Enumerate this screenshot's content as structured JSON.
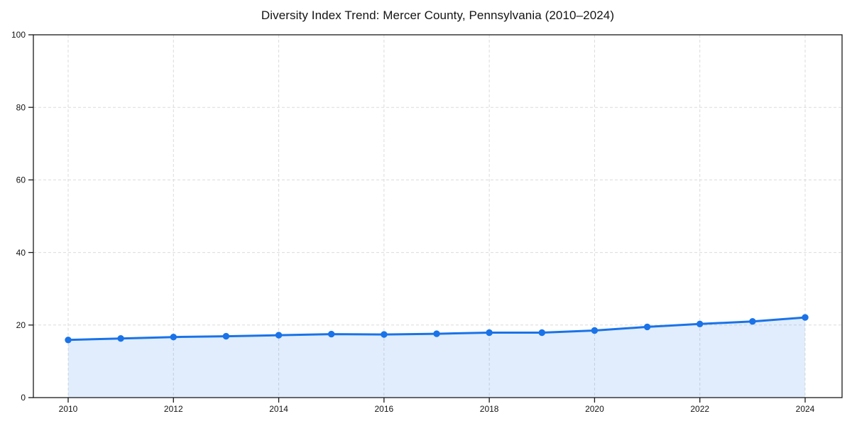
{
  "page": {
    "background_color": "#ffffff"
  },
  "chart_data": {
    "type": "line",
    "title": "Diversity Index Trend: Mercer County, Pennsylvania (2010–2024)",
    "x": [
      2010,
      2011,
      2012,
      2013,
      2014,
      2015,
      2016,
      2017,
      2018,
      2019,
      2020,
      2021,
      2022,
      2023,
      2024
    ],
    "series": [
      {
        "name": "Diversity Index",
        "values": [
          15.9,
          16.3,
          16.7,
          16.9,
          17.2,
          17.5,
          17.4,
          17.6,
          17.9,
          17.9,
          18.5,
          19.5,
          20.3,
          21.0,
          22.1
        ]
      }
    ],
    "xlabel": "",
    "ylabel": "",
    "ylim": [
      0,
      100
    ],
    "yticks": [
      0,
      20,
      40,
      60,
      80,
      100
    ],
    "ytick_labels": [
      "0",
      "20",
      "40",
      "60",
      "80",
      "100"
    ],
    "xticks": [
      2010,
      2012,
      2014,
      2016,
      2018,
      2020,
      2022,
      2024
    ],
    "xtick_labels": [
      "2010",
      "2012",
      "2014",
      "2016",
      "2018",
      "2020",
      "2022",
      "2024"
    ],
    "grid": true,
    "grid_style": "dashed",
    "legend": "none",
    "marker": "circle",
    "colors": {
      "line": "#1a73e8",
      "marker": "#1a73e8",
      "area_fill": "rgba(26,115,232,0.13)",
      "grid": "#dbdbdb",
      "axis": "#1a1a1a",
      "tick_label": "#141414",
      "title": "#141414"
    }
  }
}
